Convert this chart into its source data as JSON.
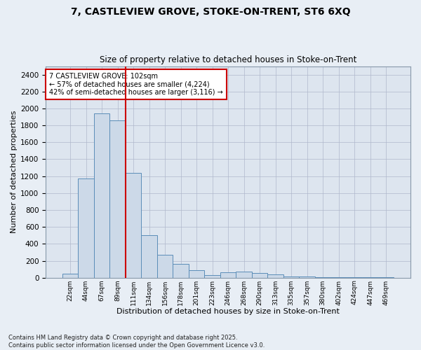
{
  "title_line1": "7, CASTLEVIEW GROVE, STOKE-ON-TRENT, ST6 6XQ",
  "title_line2": "Size of property relative to detached houses in Stoke-on-Trent",
  "xlabel": "Distribution of detached houses by size in Stoke-on-Trent",
  "ylabel": "Number of detached properties",
  "categories": [
    "22sqm",
    "44sqm",
    "67sqm",
    "89sqm",
    "111sqm",
    "134sqm",
    "156sqm",
    "178sqm",
    "201sqm",
    "223sqm",
    "246sqm",
    "268sqm",
    "290sqm",
    "313sqm",
    "335sqm",
    "357sqm",
    "380sqm",
    "402sqm",
    "424sqm",
    "447sqm",
    "469sqm"
  ],
  "values": [
    50,
    1175,
    1940,
    1860,
    1240,
    500,
    270,
    160,
    90,
    30,
    65,
    70,
    55,
    40,
    10,
    10,
    5,
    5,
    3,
    2,
    2
  ],
  "bar_color": "#ccd9e8",
  "bar_edge_color": "#5b8db8",
  "vline_color": "#cc0000",
  "vline_position": 3.5,
  "annotation_text": "7 CASTLEVIEW GROVE: 102sqm\n← 57% of detached houses are smaller (4,224)\n42% of semi-detached houses are larger (3,116) →",
  "annotation_box_color": "white",
  "annotation_box_edge_color": "#cc0000",
  "ylim": [
    0,
    2500
  ],
  "yticks": [
    0,
    200,
    400,
    600,
    800,
    1000,
    1200,
    1400,
    1600,
    1800,
    2000,
    2200,
    2400
  ],
  "grid_color": "#b0b8cc",
  "bg_color": "#dde5ef",
  "fig_bg_color": "#e8eef5",
  "footnote": "Contains HM Land Registry data © Crown copyright and database right 2025.\nContains public sector information licensed under the Open Government Licence v3.0."
}
